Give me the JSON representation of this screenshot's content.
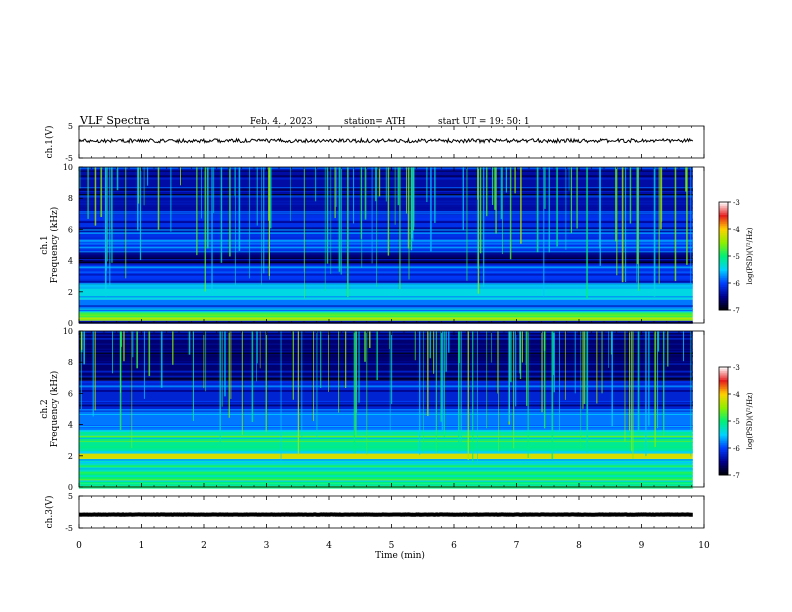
{
  "header": {
    "title": "VLF  Spectra",
    "date": "Feb. 4. , 2023",
    "station": "station= ATH",
    "start": "start  UT  =   19: 50: 1"
  },
  "chart_data": [
    {
      "type": "line",
      "ylabel": "ch.1(V)",
      "ylim": [
        -5,
        5
      ],
      "y_ticks": [
        "5",
        "-5"
      ],
      "xlim": [
        0,
        10
      ],
      "series": [
        {
          "color": "#000000",
          "x_range": [
            0,
            9.82
          ],
          "mean": 0.4,
          "noise_amplitude": 0.6
        }
      ]
    },
    {
      "type": "heatmap",
      "ylabel": "ch.1\nFrequency  (kHz)",
      "ylim": [
        0,
        10
      ],
      "y_ticks": [
        "0",
        "2",
        "4",
        "6",
        "8",
        "10"
      ],
      "xlim": [
        0,
        10
      ],
      "data_x_range": [
        0,
        9.82
      ],
      "colorbar": {
        "label": "log(PSD)(V²/Hz)",
        "range": [
          -7,
          -3
        ],
        "ticks": [
          "-3",
          "-4",
          "-5",
          "-6",
          "-7"
        ]
      },
      "rows_khz": [
        {
          "from": 0.0,
          "to": 0.15,
          "level": -6.3
        },
        {
          "from": 0.15,
          "to": 0.35,
          "level": -4.2
        },
        {
          "from": 0.35,
          "to": 0.7,
          "level": -4.8
        },
        {
          "from": 0.7,
          "to": 1.5,
          "level": -5.8
        },
        {
          "from": 1.5,
          "to": 2.5,
          "level": -5.4
        },
        {
          "from": 2.5,
          "to": 3.8,
          "level": -6.1
        },
        {
          "from": 3.8,
          "to": 4.6,
          "level": -6.6
        },
        {
          "from": 4.6,
          "to": 7.0,
          "level": -6.1
        },
        {
          "from": 7.0,
          "to": 10.0,
          "level": -6.4
        }
      ]
    },
    {
      "type": "heatmap",
      "ylabel": "ch.2\nFrequency  (kHz)",
      "ylim": [
        0,
        10
      ],
      "y_ticks": [
        "0",
        "2",
        "4",
        "6",
        "8",
        "10"
      ],
      "xlim": [
        0,
        10
      ],
      "data_x_range": [
        0,
        9.82
      ],
      "colorbar": {
        "label": "log(PSD)(V²/Hz)",
        "range": [
          -7,
          -3
        ],
        "ticks": [
          "-3",
          "-4",
          "-5",
          "-6",
          "-7"
        ]
      },
      "rows_khz": [
        {
          "from": 0.0,
          "to": 0.2,
          "level": -5.0
        },
        {
          "from": 0.2,
          "to": 1.0,
          "level": -5.0
        },
        {
          "from": 1.0,
          "to": 1.8,
          "level": -5.3
        },
        {
          "from": 1.8,
          "to": 2.2,
          "level": -4.2
        },
        {
          "from": 2.2,
          "to": 3.6,
          "level": -5.1
        },
        {
          "from": 3.6,
          "to": 5.0,
          "level": -5.8
        },
        {
          "from": 5.0,
          "to": 6.8,
          "level": -6.2
        },
        {
          "from": 6.8,
          "to": 10.0,
          "level": -6.6
        }
      ]
    },
    {
      "type": "line",
      "ylabel": "ch.3(V)",
      "ylim": [
        -5,
        5
      ],
      "y_ticks": [
        "5",
        "-5"
      ],
      "xlim": [
        0,
        10
      ],
      "series": [
        {
          "color": "#000000",
          "x_range": [
            0,
            9.82
          ],
          "mean": -0.8,
          "noise_amplitude": 0.05
        }
      ]
    }
  ],
  "x_axis": {
    "label": "Time  (min)",
    "ticks": [
      "0",
      "1",
      "2",
      "3",
      "4",
      "5",
      "6",
      "7",
      "8",
      "9",
      "10"
    ]
  }
}
